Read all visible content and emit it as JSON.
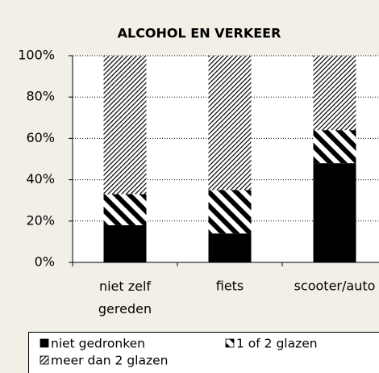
{
  "chart_data": {
    "type": "stacked-bar-100",
    "title": "ALCOHOL EN VERKEER",
    "categories": [
      "niet zelf gereden",
      "fiets",
      "scooter/auto"
    ],
    "series": [
      {
        "name": "niet gedronken",
        "color": "#000000",
        "pattern": "solid",
        "values": [
          18,
          14,
          48
        ]
      },
      {
        "name": "1 of 2 glazen",
        "color": "#000000",
        "pattern": "wide-stripes",
        "values": [
          15,
          21,
          16
        ]
      },
      {
        "name": "meer dan 2 glazen",
        "color": "#000000",
        "pattern": "fine-hatch",
        "values": [
          67,
          65,
          36
        ]
      }
    ],
    "ylim": [
      0,
      100
    ],
    "yticks": [
      {
        "value": 0,
        "label": "0%"
      },
      {
        "value": 20,
        "label": "20%"
      },
      {
        "value": 40,
        "label": "40%"
      },
      {
        "value": 60,
        "label": "60%"
      },
      {
        "value": 80,
        "label": "80%"
      },
      {
        "value": 100,
        "label": "100%"
      }
    ],
    "grid": true,
    "legend": "bottom"
  }
}
